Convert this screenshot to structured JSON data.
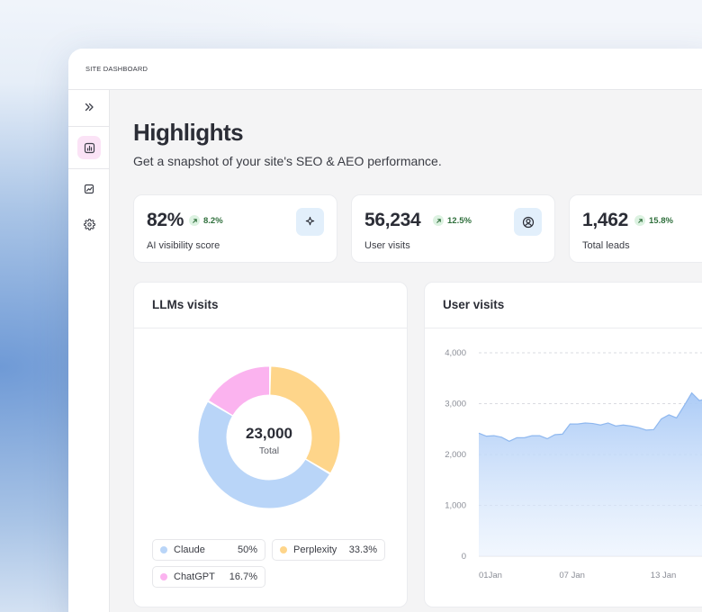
{
  "window": {
    "title": "SITE DASHBOARD"
  },
  "sidebar": {
    "items": [
      {
        "name": "expand",
        "icon": "double-chevron-right-icon",
        "active": false
      },
      {
        "name": "analytics",
        "icon": "bar-chart-icon",
        "active": true
      },
      {
        "name": "reports",
        "icon": "chart-square-icon",
        "active": false
      },
      {
        "name": "settings",
        "icon": "gear-icon",
        "active": false
      }
    ]
  },
  "page": {
    "title": "Highlights",
    "subtitle": "Get a snapshot of your site's SEO & AEO performance."
  },
  "stats": [
    {
      "value": "82%",
      "delta": "8.2%",
      "label": "AI visibility score",
      "icon": "sparkle-icon"
    },
    {
      "value": "56,234",
      "delta": "12.5%",
      "label": "User visits",
      "icon": "user-circle-icon"
    },
    {
      "value": "1,462",
      "delta": "15.8%",
      "label": "Total leads",
      "icon": ""
    }
  ],
  "llm_panel": {
    "title": "LLMs visits",
    "total_value": "23,000",
    "total_label": "Total",
    "legend": [
      {
        "name": "Claude",
        "value": "50%",
        "color": "#b9d5f8"
      },
      {
        "name": "Perplexity",
        "value": "33.3%",
        "color": "#fed58a"
      },
      {
        "name": "ChatGPT",
        "value": "16.7%",
        "color": "#fbb3ef"
      }
    ]
  },
  "visits_panel": {
    "title": "User visits"
  },
  "chart_data": [
    {
      "type": "pie",
      "title": "LLMs visits",
      "categories": [
        "Claude",
        "Perplexity",
        "ChatGPT"
      ],
      "values": [
        50,
        33.3,
        16.7
      ],
      "colors": [
        "#b9d5f8",
        "#fed58a",
        "#fbb3ef"
      ],
      "center_value": "23,000",
      "center_label": "Total"
    },
    {
      "type": "area",
      "title": "User visits",
      "xlabel": "",
      "ylabel": "",
      "ylim": [
        0,
        4000
      ],
      "yticks": [
        "0",
        "1,000",
        "2,000",
        "3,000",
        "4,000"
      ],
      "xticks": [
        {
          "label": "01Jan",
          "day": 1
        },
        {
          "label": "07 Jan",
          "day": 7
        },
        {
          "label": "13 Jan",
          "day": 13
        }
      ],
      "grid": true,
      "color": "#9cc2f4",
      "x": [
        1,
        1.5,
        2,
        2.5,
        3,
        3.5,
        4,
        4.5,
        5,
        5.5,
        6,
        6.5,
        7,
        7.5,
        8,
        8.5,
        9,
        9.5,
        10,
        10.5,
        11,
        11.5,
        12,
        12.5,
        13,
        13.5,
        14,
        14.5,
        15,
        15.5,
        16
      ],
      "y": [
        2420,
        2360,
        2370,
        2340,
        2260,
        2330,
        2330,
        2370,
        2370,
        2310,
        2390,
        2400,
        2600,
        2600,
        2620,
        2610,
        2580,
        2620,
        2560,
        2580,
        2560,
        2530,
        2480,
        2490,
        2700,
        2780,
        2720,
        2960,
        3210,
        3060,
        3100
      ]
    }
  ]
}
